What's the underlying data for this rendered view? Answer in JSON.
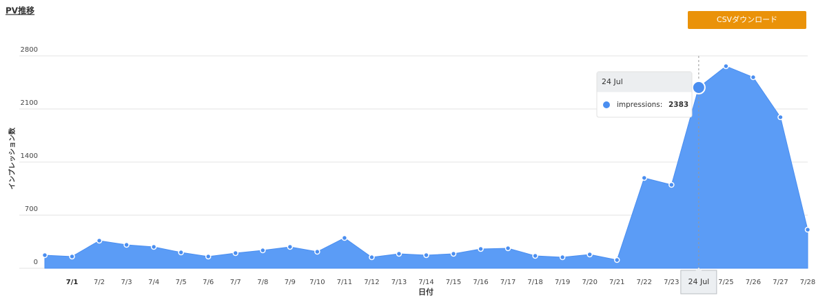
{
  "chart_data": {
    "type": "area",
    "title": "PV推移",
    "button": "CSVダウンロード",
    "y_label": "インプレッション数",
    "x_label": "日付",
    "categories": [
      null,
      "7/1",
      "7/2",
      "7/3",
      "7/4",
      "7/5",
      "7/6",
      "7/7",
      "7/8",
      "7/9",
      "7/10",
      "7/11",
      "7/12",
      "7/13",
      "7/14",
      "7/15",
      "7/16",
      "7/17",
      "7/18",
      "7/19",
      "7/20",
      "7/21",
      "7/22",
      "7/23",
      "24 Jul",
      "7/25",
      "7/26",
      "7/27",
      "7/28"
    ],
    "values": [
      173,
      155,
      364,
      309,
      282,
      209,
      155,
      200,
      236,
      282,
      218,
      400,
      145,
      191,
      173,
      191,
      255,
      264,
      164,
      145,
      182,
      109,
      1191,
      1100,
      2383,
      2664,
      2518,
      1991,
      509
    ],
    "color": "#5b9cf6",
    "ylim": [
      0,
      2800
    ],
    "yticks": [
      0,
      700,
      1400,
      2100,
      2800
    ],
    "grid": true,
    "tooltip": {
      "index": 24,
      "label": "impressions:"
    }
  }
}
